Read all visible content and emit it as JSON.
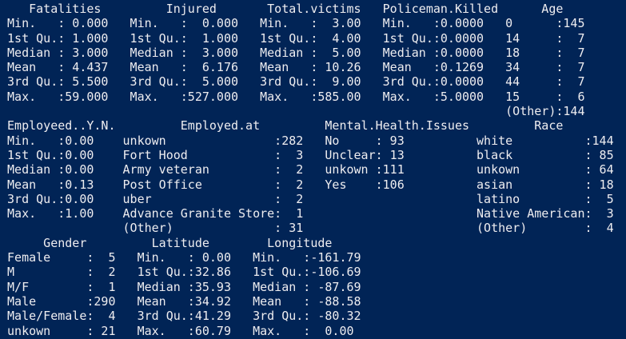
{
  "terminal": {
    "colors": {
      "background": "#012456",
      "foreground": "#EEEDF0"
    },
    "lines": [
      "    Fatalities         Injured       Total.victims   Policeman.Killed      Age",
      " Min.   : 0.000   Min.   :  0.000   Min.   :  3.00   Min.   :0.0000   0      :145",
      " 1st Qu.: 1.000   1st Qu.:  1.000   1st Qu.:  4.00   1st Qu.:0.0000   14     :  7",
      " Median : 3.000   Median :  3.000   Median :  5.00   Median :0.0000   18     :  7",
      " Mean   : 4.437   Mean   :  6.176   Mean   : 10.26   Mean   :0.1269   34     :  7",
      " 3rd Qu.: 5.500   3rd Qu.:  5.000   3rd Qu.:  9.00   3rd Qu.:0.0000   44     :  7",
      " Max.   :59.000   Max.   :527.000   Max.   :585.00   Max.   :5.0000   15     :  6",
      "                                                                      (Other):144",
      " Employeed..Y.N.         Employed.at         Mental.Health.Issues         Race",
      " Min.   :0.00    unkown               :282   No     : 93          white          :144",
      " 1st Qu.:0.00    Fort Hood            :  3   Unclear: 13          black          : 85",
      " Median :0.00    Army veteran         :  2   unkown :111          unkown         : 64",
      " Mean   :0.13    Post Office          :  2   Yes    :106          asian          : 18",
      " 3rd Qu.:0.00    uber                 :  2                        latino         :  5",
      " Max.   :1.00    Advance Granite Store:  1                        Native American:  3",
      "                 (Other)              : 31                        (Other)        :  4",
      "      Gender         Latitude        Longitude",
      " Female     :  5   Min.   : 0.00   Min.   :-161.79",
      " M          :  2   1st Qu.:32.86   1st Qu.:-106.69",
      " M/F        :  1   Median :35.93   Median : -87.69",
      " Male       :290   Mean   :34.92   Mean   : -88.58",
      " Male/Female:  4   3rd Qu.:41.29   3rd Qu.: -80.32",
      " unkown     : 21   Max.   :60.79   Max.   :  0.00"
    ],
    "summary": {
      "Fatalities": {
        "Min.": "0.000",
        "1st Qu.": "1.000",
        "Median": "3.000",
        "Mean": "4.437",
        "3rd Qu.": "5.500",
        "Max.": "59.000"
      },
      "Injured": {
        "Min.": "0.000",
        "1st Qu.": "1.000",
        "Median": "3.000",
        "Mean": "6.176",
        "3rd Qu.": "5.000",
        "Max.": "527.000"
      },
      "Total.victims": {
        "Min.": "3.00",
        "1st Qu.": "4.00",
        "Median": "5.00",
        "Mean": "10.26",
        "3rd Qu.": "9.00",
        "Max.": "585.00"
      },
      "Policeman.Killed": {
        "Min.": "0.0000",
        "1st Qu.": "0.0000",
        "Median": "0.0000",
        "Mean": "0.1269",
        "3rd Qu.": "0.0000",
        "Max.": "5.0000"
      },
      "Age": {
        "0": 145,
        "14": 7,
        "18": 7,
        "34": 7,
        "44": 7,
        "15": 6,
        "(Other)": 144
      },
      "Employeed..Y.N.": {
        "Min.": "0.00",
        "1st Qu.": "0.00",
        "Median": "0.00",
        "Mean": "0.13",
        "3rd Qu.": "0.00",
        "Max.": "1.00"
      },
      "Employed.at": {
        "unkown": 282,
        "Fort Hood": 3,
        "Army veteran": 2,
        "Post Office": 2,
        "uber": 2,
        "Advance Granite Store": 1,
        "(Other)": 31
      },
      "Mental.Health.Issues": {
        "No": 93,
        "Unclear": 13,
        "unkown": 111,
        "Yes": 106
      },
      "Race": {
        "white": 144,
        "black": 85,
        "unkown": 64,
        "asian": 18,
        "latino": 5,
        "Native American": 3,
        "(Other)": 4
      },
      "Gender": {
        "Female": 5,
        "M": 2,
        "M/F": 1,
        "Male": 290,
        "Male/Female": 4,
        "unkown": 21
      },
      "Latitude": {
        "Min.": "0.00",
        "1st Qu.": "32.86",
        "Median": "35.93",
        "Mean": "34.92",
        "3rd Qu.": "41.29",
        "Max.": "60.79"
      },
      "Longitude": {
        "Min.": "-161.79",
        "1st Qu.": "-106.69",
        "Median": "-87.69",
        "Mean": "-88.58",
        "3rd Qu.": "-80.32",
        "Max.": "0.00"
      }
    }
  }
}
